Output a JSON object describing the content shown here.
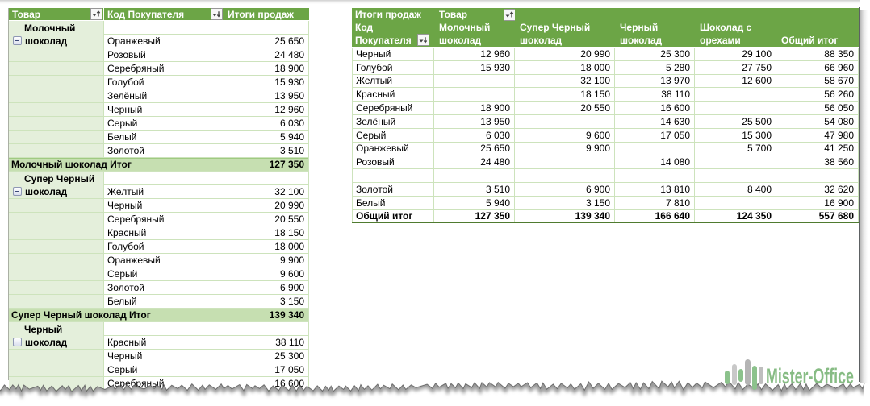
{
  "colors": {
    "header_green": "#6ca546",
    "light_green_col": "#e4efdb",
    "subtotal_green": "#c6dfb1",
    "subtotal_top_line": "#9fca81",
    "grid_green": "#cde3bc",
    "grand_border_green": "#4f7b2f",
    "header_text": "#ffffff",
    "logo_green": "#87bc84",
    "logo_grey": "#c2c2c2"
  },
  "left_table": {
    "headers": [
      {
        "label": "Товар",
        "sort": "asc"
      },
      {
        "label": "Код Покупателя",
        "sort": "desc"
      },
      {
        "label": "Итоги продаж",
        "sort": null
      }
    ],
    "groups": [
      {
        "product": "Молочный шоколад",
        "rows": [
          {
            "customer": "Оранжевый",
            "value": "25 650"
          },
          {
            "customer": "Розовый",
            "value": "24 480"
          },
          {
            "customer": "Серебряный",
            "value": "18 900"
          },
          {
            "customer": "Голубой",
            "value": "15 930"
          },
          {
            "customer": "Зелёный",
            "value": "13 950"
          },
          {
            "customer": "Черный",
            "value": "12 960"
          },
          {
            "customer": "Серый",
            "value": "6 030"
          },
          {
            "customer": "Белый",
            "value": "5 940"
          },
          {
            "customer": "Золотой",
            "value": "3 510"
          }
        ],
        "subtotal_label": "Молочный шоколад Итог",
        "subtotal_value": "127 350"
      },
      {
        "product": "Супер Черный шоколад",
        "rows": [
          {
            "customer": "Желтый",
            "value": "32 100"
          },
          {
            "customer": "Черный",
            "value": "20 990"
          },
          {
            "customer": "Серебряный",
            "value": "20 550"
          },
          {
            "customer": "Красный",
            "value": "18 150"
          },
          {
            "customer": "Голубой",
            "value": "18 000"
          },
          {
            "customer": "Оранжевый",
            "value": "9 900"
          },
          {
            "customer": "Серый",
            "value": "9 600"
          },
          {
            "customer": "Золотой",
            "value": "6 900"
          },
          {
            "customer": "Белый",
            "value": "3 150"
          }
        ],
        "subtotal_label": "Супер Черный шоколад Итог",
        "subtotal_value": "139 340"
      },
      {
        "product": "Черный шоколад",
        "rows": [
          {
            "customer": "Красный",
            "value": "38 110"
          },
          {
            "customer": "Черный",
            "value": "25 300"
          },
          {
            "customer": "Серый",
            "value": "17 050"
          },
          {
            "customer": "Серебряный",
            "value": "16 600"
          }
        ],
        "subtotal_label": null,
        "subtotal_value": null
      }
    ]
  },
  "right_table": {
    "corner": {
      "values_label": "Итоги продаж",
      "row_field": "Код Покупателя",
      "row_field_lines": [
        "Код",
        "Покупателя"
      ],
      "row_field_sort": "desc",
      "col_field": "Товар",
      "col_field_sort": "asc"
    },
    "column_headers": [
      [
        "Молочный",
        "шоколад"
      ],
      [
        "Супер Черный",
        "шоколад"
      ],
      [
        "Черный",
        "шоколад"
      ],
      [
        "Шоколад с",
        "орехами"
      ],
      [
        "Общий итог"
      ]
    ],
    "rows": [
      {
        "label": "Черный",
        "values": [
          "12 960",
          "20 990",
          "25 300",
          "29 100",
          "88 350"
        ]
      },
      {
        "label": "Голубой",
        "values": [
          "15 930",
          "18 000",
          "5 280",
          "27 750",
          "66 960"
        ]
      },
      {
        "label": "Желтый",
        "values": [
          "",
          "32 100",
          "13 970",
          "12 600",
          "58 670"
        ]
      },
      {
        "label": "Красный",
        "values": [
          "",
          "18 150",
          "38 110",
          "",
          "56 260"
        ]
      },
      {
        "label": "Серебряный",
        "values": [
          "18 900",
          "20 550",
          "16 600",
          "",
          "56 050"
        ]
      },
      {
        "label": "Зелёный",
        "values": [
          "13 950",
          "",
          "14 630",
          "25 500",
          "54 080"
        ]
      },
      {
        "label": "Серый",
        "values": [
          "6 030",
          "9 600",
          "17 050",
          "15 300",
          "47 980"
        ]
      },
      {
        "label": "Оранжевый",
        "values": [
          "25 650",
          "9 900",
          "",
          "5 700",
          "41 250"
        ]
      },
      {
        "label": "Розовый",
        "values": [
          "24 480",
          "",
          "14 080",
          "",
          "38 560"
        ]
      },
      {
        "label": "",
        "values": [
          "",
          "",
          "",
          "",
          ""
        ]
      },
      {
        "label": "Золотой",
        "values": [
          "3 510",
          "6 900",
          "13 810",
          "8 400",
          "32 620"
        ]
      },
      {
        "label": "Белый",
        "values": [
          "5 940",
          "3 150",
          "7 810",
          "",
          "16 900"
        ]
      }
    ],
    "grand_total": {
      "label": "Общий итог",
      "values": [
        "127 350",
        "139 340",
        "166 640",
        "124 350",
        "557 680"
      ]
    }
  },
  "logo": {
    "text": "Mister-Office"
  }
}
